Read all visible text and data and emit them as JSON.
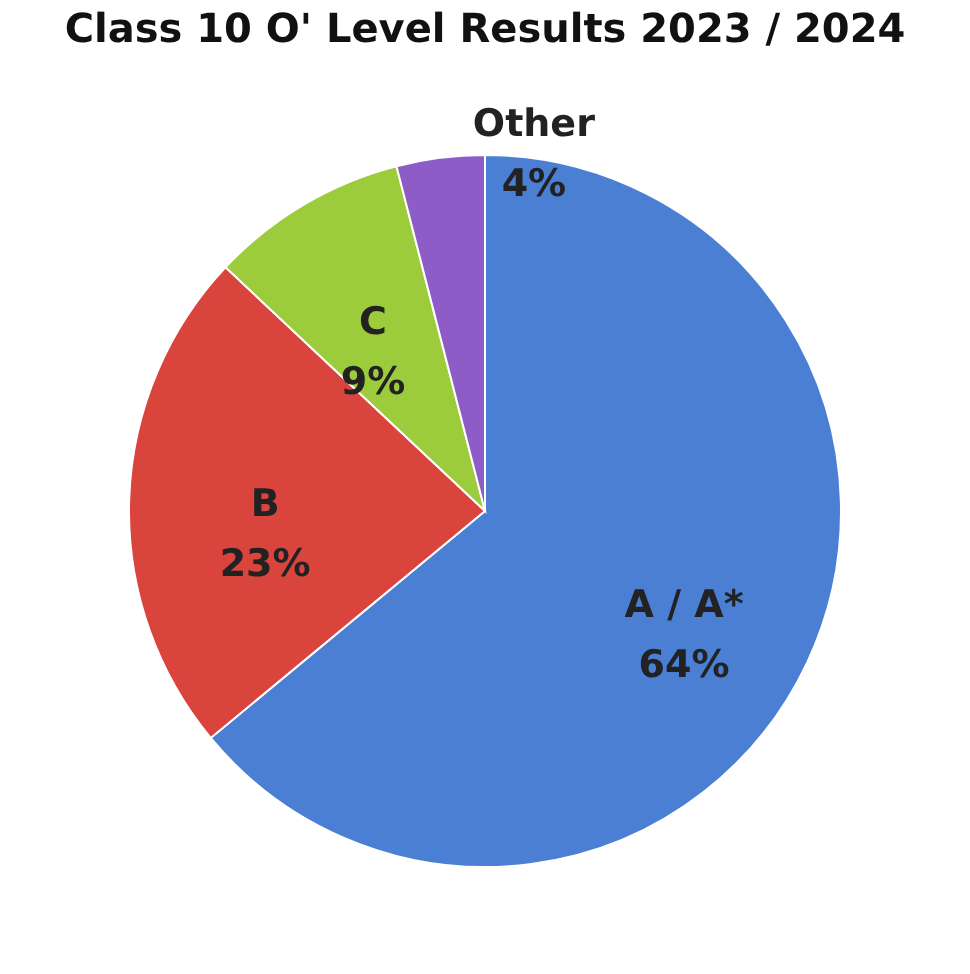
{
  "chart_data": {
    "type": "pie",
    "title": "Class 10 O' Level Results 2023 / 2024",
    "categories": [
      "A / A*",
      "B",
      "C",
      "Other"
    ],
    "values": [
      64,
      23,
      9,
      4
    ],
    "colors": [
      "#4a7fd4",
      "#d9443c",
      "#9ccc3c",
      "#8e5cc6"
    ],
    "value_labels": [
      "64%",
      "23%",
      "9%",
      "4%"
    ],
    "legend": false
  }
}
